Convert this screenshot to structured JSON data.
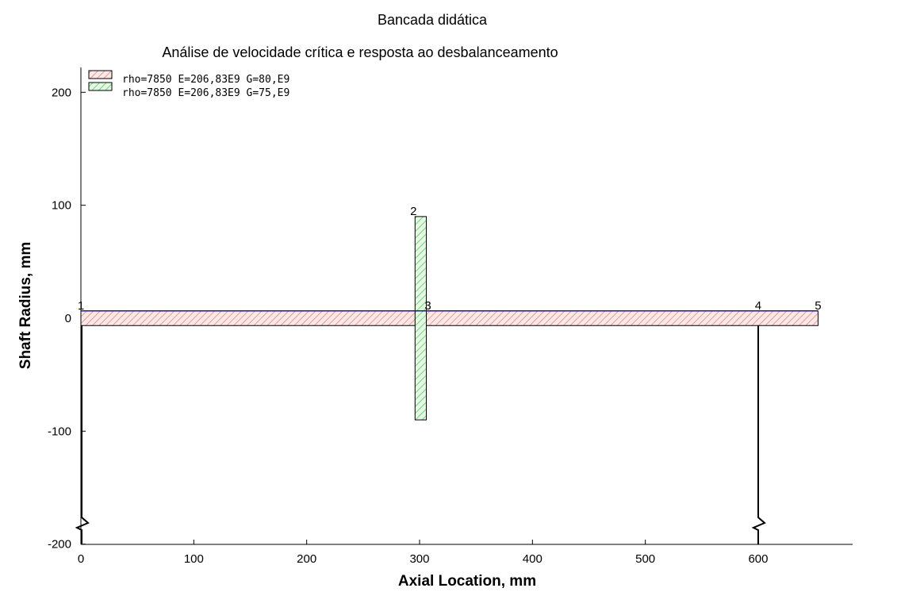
{
  "chart_data": {
    "type": "shaft-geometry",
    "title": "Bancada didática",
    "subtitle": "Análise de velocidade crítica e resposta ao desbalanceamento",
    "xlabel": "Axial Location, mm",
    "ylabel": "Shaft Radius, mm",
    "xlim": [
      0,
      680
    ],
    "ylim": [
      -200,
      220
    ],
    "xticks": [
      0,
      100,
      200,
      300,
      400,
      500,
      600
    ],
    "yticks": [
      200,
      100,
      0,
      -100,
      -200
    ],
    "grid": false,
    "legend_position": "top-left",
    "materials": [
      {
        "label": "rho=7850  E=206,83E9  G=80,E9",
        "color": "#e8a0a0",
        "fill": "#fde8e8"
      },
      {
        "label": "rho=7850  E=206,83E9  G=75,E9",
        "color": "#7fd37f",
        "fill": "#e6f9e6"
      }
    ],
    "elements": [
      {
        "material": 0,
        "x_start": 0,
        "x_end": 653,
        "outer_radius": 6.5
      },
      {
        "material": 1,
        "x_start": 296,
        "x_end": 306,
        "outer_radius": 90
      }
    ],
    "stations": [
      {
        "label": "1",
        "x": 0
      },
      {
        "label": "2",
        "x": 296
      },
      {
        "label": "3",
        "x": 306
      },
      {
        "label": "4",
        "x": 600
      },
      {
        "label": "5",
        "x": 653
      }
    ],
    "supports": [
      0,
      600
    ]
  }
}
